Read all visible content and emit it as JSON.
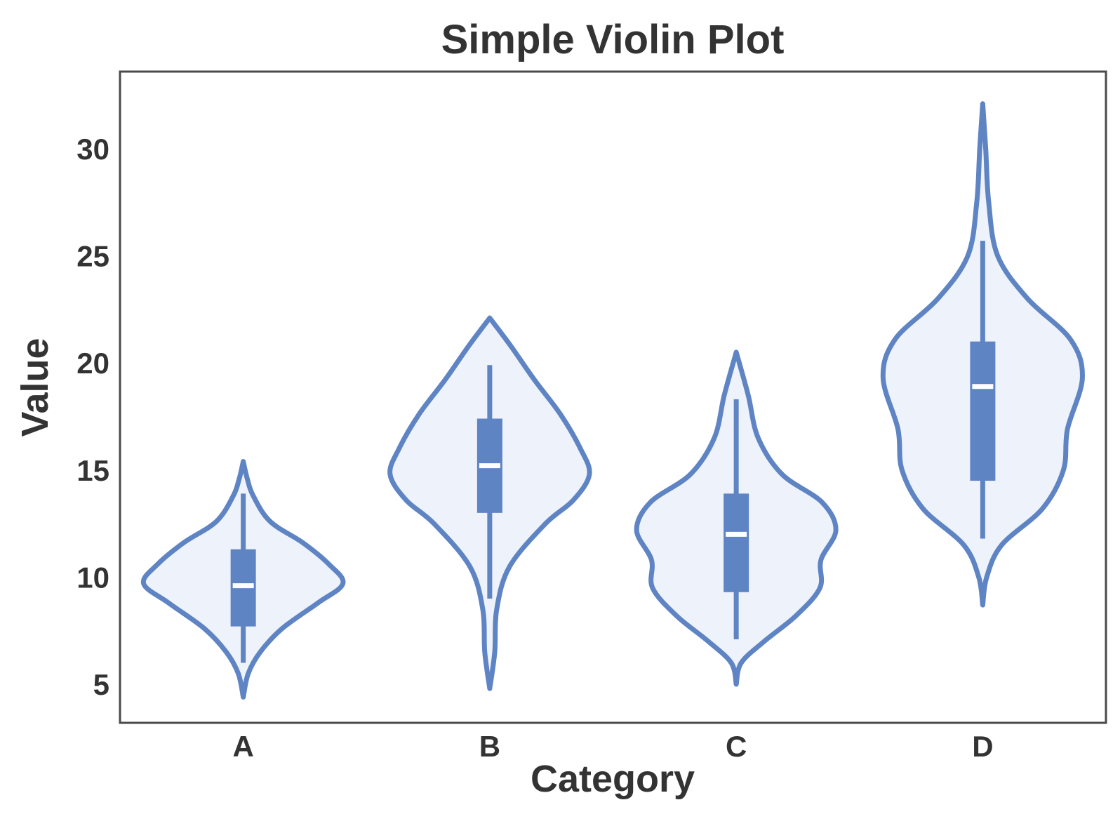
{
  "chart_data": {
    "type": "violin",
    "title": "Simple Violin Plot",
    "xlabel": "Category",
    "ylabel": "Value",
    "categories": [
      "A",
      "B",
      "C",
      "D"
    ],
    "ylim": [
      3.2,
      33.6
    ],
    "yticks": [
      5,
      10,
      15,
      20,
      25,
      30
    ],
    "grid": false,
    "colors": {
      "line": "#5e84c4",
      "fill": "#eef2fa",
      "box": "#5e84c4",
      "median": "#ffffff",
      "frame": "#4a4a4a",
      "text": "#333333"
    },
    "violins": [
      {
        "name": "A",
        "min": 4.4,
        "q1": 7.7,
        "median": 9.6,
        "q3": 11.3,
        "max": 15.4,
        "whisker_low": 6.0,
        "whisker_high": 13.9,
        "density": [
          [
            4.4,
            0.0
          ],
          [
            5.5,
            0.05
          ],
          [
            6.5,
            0.17
          ],
          [
            7.6,
            0.39
          ],
          [
            8.8,
            0.75
          ],
          [
            9.7,
            1.0
          ],
          [
            10.6,
            0.86
          ],
          [
            11.6,
            0.6
          ],
          [
            12.6,
            0.27
          ],
          [
            13.8,
            0.1
          ],
          [
            14.6,
            0.04
          ],
          [
            15.4,
            0.0
          ]
        ]
      },
      {
        "name": "B",
        "min": 4.8,
        "q1": 13.0,
        "median": 15.2,
        "q3": 17.4,
        "max": 22.1,
        "whisker_low": 9.0,
        "whisker_high": 19.9,
        "density": [
          [
            4.8,
            0.0
          ],
          [
            6.5,
            0.05
          ],
          [
            8.5,
            0.07
          ],
          [
            10.5,
            0.2
          ],
          [
            12.5,
            0.56
          ],
          [
            13.6,
            0.84
          ],
          [
            14.8,
            1.0
          ],
          [
            16.0,
            0.91
          ],
          [
            17.6,
            0.71
          ],
          [
            19.2,
            0.45
          ],
          [
            20.8,
            0.21
          ],
          [
            22.1,
            0.0
          ]
        ]
      },
      {
        "name": "C",
        "min": 5.0,
        "q1": 9.3,
        "median": 12.0,
        "q3": 13.9,
        "max": 20.5,
        "whisker_low": 7.1,
        "whisker_high": 18.3,
        "density": [
          [
            5.0,
            0.0
          ],
          [
            6.0,
            0.05
          ],
          [
            7.0,
            0.28
          ],
          [
            8.2,
            0.6
          ],
          [
            9.5,
            0.84
          ],
          [
            10.8,
            0.85
          ],
          [
            12.2,
            1.0
          ],
          [
            13.5,
            0.86
          ],
          [
            14.8,
            0.46
          ],
          [
            16.5,
            0.22
          ],
          [
            18.5,
            0.12
          ],
          [
            20.5,
            0.0
          ]
        ]
      },
      {
        "name": "D",
        "min": 8.7,
        "q1": 14.5,
        "median": 18.9,
        "q3": 21.0,
        "max": 32.1,
        "whisker_low": 11.8,
        "whisker_high": 25.7,
        "density": [
          [
            8.7,
            0.0
          ],
          [
            10.0,
            0.04
          ],
          [
            11.5,
            0.19
          ],
          [
            13.2,
            0.6
          ],
          [
            15.0,
            0.81
          ],
          [
            16.9,
            0.85
          ],
          [
            19.3,
            1.0
          ],
          [
            21.1,
            0.88
          ],
          [
            23.0,
            0.45
          ],
          [
            25.0,
            0.15
          ],
          [
            27.5,
            0.06
          ],
          [
            30.0,
            0.03
          ],
          [
            32.1,
            0.0
          ]
        ]
      }
    ]
  }
}
